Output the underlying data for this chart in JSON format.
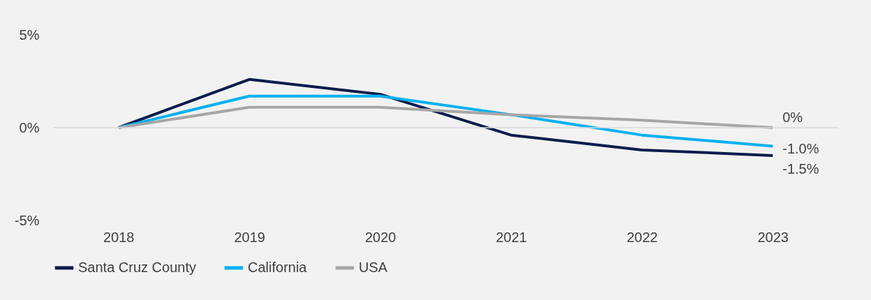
{
  "chart_data": {
    "type": "line",
    "categories": [
      "2018",
      "2019",
      "2020",
      "2021",
      "2022",
      "2023"
    ],
    "series": [
      {
        "name": "Santa Cruz County",
        "color": "#0c1c4c",
        "values": [
          0,
          2.6,
          1.8,
          -0.4,
          -1.2,
          -1.5
        ],
        "value_labels": [
          null,
          null,
          null,
          null,
          null,
          "-1.5%"
        ]
      },
      {
        "name": "California",
        "color": "#00b0f0",
        "values": [
          0,
          1.7,
          1.7,
          0.7,
          -0.4,
          -1.0
        ],
        "value_labels": [
          null,
          null,
          null,
          null,
          null,
          "-1.0%"
        ]
      },
      {
        "name": "USA",
        "color": "#a6a6a6",
        "values": [
          0,
          1.1,
          1.1,
          0.7,
          0.4,
          0
        ],
        "value_labels": [
          null,
          null,
          null,
          null,
          null,
          "0%"
        ]
      }
    ],
    "ylim": [
      -5,
      5
    ],
    "yticks": [
      {
        "value": -5,
        "label": "-5%"
      },
      {
        "value": 0,
        "label": "0%"
      },
      {
        "value": 5,
        "label": "5%"
      }
    ],
    "grid": false,
    "ref_lines": [
      {
        "axis": "y",
        "value": 0,
        "color": "#d9d9d9"
      }
    ],
    "legend": "bottom",
    "marker": "none",
    "line_style": "solid"
  }
}
